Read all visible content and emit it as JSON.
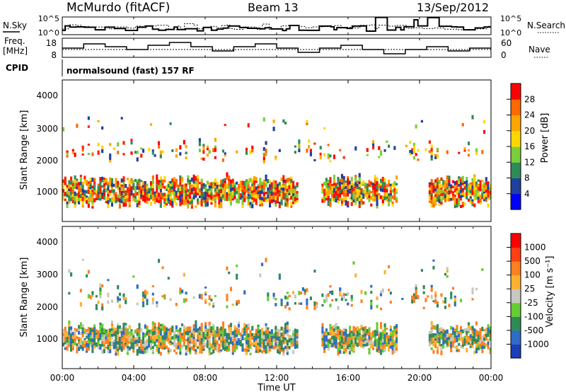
{
  "header": {
    "station": "McMurdo (fitACF)",
    "beam": "Beam 13",
    "date": "13/Sep/2012"
  },
  "top_panels": {
    "nsky_label": "N.Sky",
    "nsearch_label": "N.Search",
    "nsky_ticks": [
      "10^5",
      "10^0"
    ],
    "freq_label": "Freq.",
    "freq_unit": "[MHz]",
    "freq_ticks": [
      "18",
      "8"
    ],
    "nave_label": "Nave",
    "nave_ticks": [
      "60",
      "0"
    ],
    "cpid_label": "CPID",
    "cpid_text": "normalsound (fast) 157 RF"
  },
  "chart_data": [
    {
      "type": "heatmap",
      "name": "power",
      "ylabel": "Slant Range [km]",
      "yticks": [
        "4000",
        "3000",
        "2000",
        "1000"
      ],
      "ylim": [
        200,
        4600
      ],
      "colorbar": {
        "label": "Power [dB]",
        "ticks": [
          "28",
          "24",
          "20",
          "16",
          "12",
          "8",
          "4"
        ],
        "colors": [
          "#0000ff",
          "#2040a0",
          "#2e8b57",
          "#7ccd3a",
          "#ffd700",
          "#ffa500",
          "#ff6a00",
          "#ff0000"
        ]
      }
    },
    {
      "type": "heatmap",
      "name": "velocity",
      "ylabel": "Slant Range [km]",
      "yticks": [
        "4000",
        "3000",
        "2000",
        "1000"
      ],
      "ylim": [
        200,
        4600
      ],
      "xlabel": "Time UT",
      "xticks": [
        "00:00",
        "04:00",
        "08:00",
        "12:00",
        "16:00",
        "20:00",
        "00:00"
      ],
      "colorbar": {
        "label": "Velocity [m s⁻¹]",
        "ticks": [
          "1000",
          "500",
          "100",
          "25",
          "-25",
          "-100",
          "-500",
          "-1000"
        ],
        "colors": [
          "#1a3fb8",
          "#2e6cc8",
          "#2e8b57",
          "#66cc33",
          "#c8c8c0",
          "#ffb030",
          "#ff8020",
          "#ff4010",
          "#ff0000"
        ]
      }
    }
  ]
}
